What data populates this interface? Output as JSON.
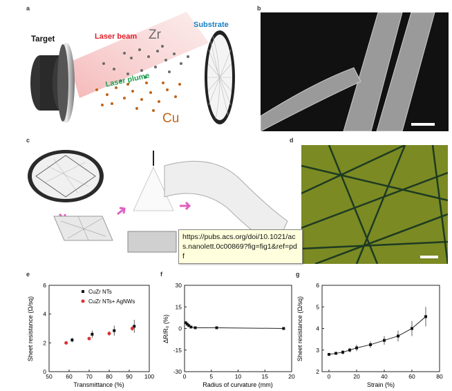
{
  "panels": {
    "a": "a",
    "b": "b",
    "c": "c",
    "d": "d",
    "e": "e",
    "f": "f",
    "g": "g"
  },
  "panel_a": {
    "target": "Target",
    "laser_beam": "Laser beam",
    "zr": "Zr",
    "laser_plume": "Laser plume",
    "cu": "Cu",
    "substrate": "Substrate"
  },
  "tooltip": {
    "url": "https://pubs.acs.org/doi/10.1021/acs.nanolett.0c00869?fig=fig1&ref=pdf"
  },
  "colors": {
    "laser": "#e01e2a",
    "zr": "#6b6b6b",
    "cu": "#c0641a",
    "plume": "#1fa050",
    "substrate": "#1a7fc0",
    "arrow": "#e060c0",
    "marker_red": "#e03030"
  },
  "chart_data": [
    {
      "id": "e",
      "type": "scatter",
      "xlabel": "Transmittance (%)",
      "ylabel": "Sheet resistance (Ω/sq)",
      "xlim": [
        50,
        100
      ],
      "ylim": [
        0,
        6
      ],
      "xticks": [
        "50",
        "60",
        "70",
        "80",
        "90",
        "100"
      ],
      "yticks": [
        "0",
        "2",
        "4",
        "6"
      ],
      "series": [
        {
          "name": "CuZr NTs",
          "marker": "square",
          "x": [
            61.5,
            71.5,
            82.5,
            92.5
          ],
          "y": [
            2.2,
            2.6,
            2.85,
            3.15
          ],
          "err": [
            0.15,
            0.25,
            0.35,
            0.45
          ]
        },
        {
          "name": "CuZr NTs+ AgNWs",
          "marker": "circle",
          "x": [
            58.5,
            70,
            80,
            91.5
          ],
          "y": [
            2.0,
            2.3,
            2.65,
            3.0
          ],
          "err": [
            0.05,
            0.1,
            0.15,
            0.15
          ]
        }
      ]
    },
    {
      "id": "f",
      "type": "line",
      "xlabel": "Radius of curvature (mm)",
      "ylabel": "ΔR/R₀ (%)",
      "xlim": [
        0,
        20
      ],
      "ylim": [
        -30,
        30
      ],
      "xticks": [
        "0",
        "5",
        "10",
        "15",
        "20"
      ],
      "yticks": [
        "-30",
        "-15",
        "0",
        "15",
        "30"
      ],
      "series": [
        {
          "name": "ΔR/R0",
          "x": [
            0.2,
            0.5,
            0.8,
            1.2,
            2,
            6,
            18.5
          ],
          "y": [
            4,
            3,
            2,
            1,
            0.5,
            0.5,
            0
          ]
        }
      ]
    },
    {
      "id": "g",
      "type": "line",
      "xlabel": "Strain (%)",
      "ylabel": "Sheet resistance (Ω/sq)",
      "xlim": [
        -5,
        80
      ],
      "ylim": [
        2,
        6
      ],
      "xticks": [
        "0",
        "20",
        "40",
        "60",
        "80"
      ],
      "yticks": [
        "2",
        "3",
        "4",
        "5",
        "6"
      ],
      "series": [
        {
          "name": "Sheet resistance",
          "x": [
            0,
            5,
            10,
            15,
            20,
            30,
            40,
            50,
            60,
            70
          ],
          "y": [
            2.8,
            2.85,
            2.9,
            3.0,
            3.1,
            3.25,
            3.45,
            3.65,
            4.0,
            4.55
          ],
          "err": [
            0.05,
            0.05,
            0.1,
            0.1,
            0.15,
            0.15,
            0.2,
            0.25,
            0.35,
            0.45
          ]
        }
      ]
    }
  ]
}
